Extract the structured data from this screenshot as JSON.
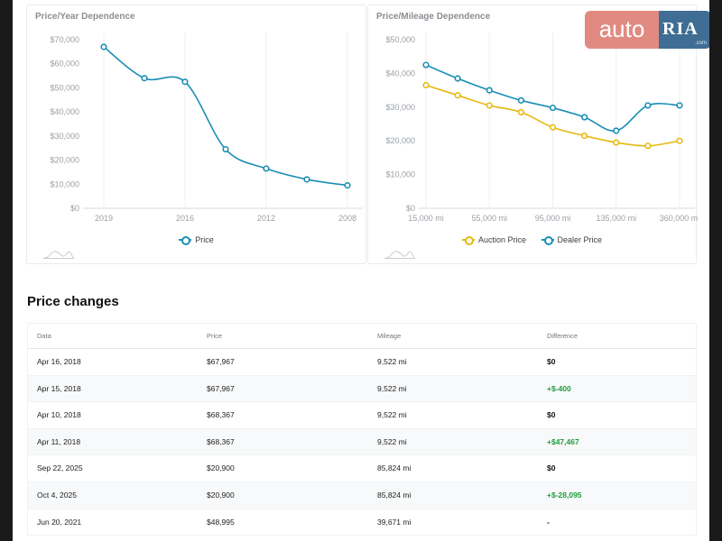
{
  "logo": {
    "left_text": "auto",
    "right_text": "RIA",
    "sub_text": ".com"
  },
  "year_chart": {
    "title": "Price/Year Dependence",
    "chart_data": {
      "type": "line",
      "x": [
        "2019",
        "",
        "2016",
        "",
        "2012",
        "",
        "2008"
      ],
      "x_tick_labels": [
        "2019",
        "2016",
        "2012",
        "2008"
      ],
      "series": [
        {
          "name": "Price",
          "color": "#1a8eb5",
          "values": [
            67000,
            54000,
            52500,
            24500,
            16500,
            12000,
            9500
          ]
        }
      ],
      "y_ticks": [
        "$70,000",
        "$60,000",
        "$50,000",
        "$40,000",
        "$30,000",
        "$20,000",
        "$10,000",
        "$0"
      ],
      "ylim": [
        0,
        70000
      ],
      "grid": true,
      "legend": "bottom"
    }
  },
  "mileage_chart": {
    "title": "Price/Mileage Dependence",
    "chart_data": {
      "type": "line",
      "x_tick_labels": [
        "15,000 mi",
        "55,000 mi",
        "95,000 mi",
        "135,000 mi",
        "360,000 mi"
      ],
      "series": [
        {
          "name": "Auction Price",
          "color": "#e6b912",
          "values": [
            36500,
            33500,
            30500,
            28500,
            24000,
            21500,
            19500,
            18500,
            20000
          ]
        },
        {
          "name": "Dealer Price",
          "color": "#1a8eb5",
          "values": [
            42500,
            38500,
            35000,
            32000,
            29800,
            27000,
            23000,
            30500,
            30500
          ]
        }
      ],
      "y_ticks": [
        "$50,000",
        "$40,000",
        "$30,000",
        "$20,000",
        "$10,000",
        "$0"
      ],
      "ylim": [
        0,
        50000
      ],
      "grid": true,
      "legend": "bottom"
    }
  },
  "price_changes": {
    "title": "Price changes",
    "headers": [
      "Data",
      "Price",
      "Mileage",
      "Difference"
    ],
    "rows": [
      {
        "date": "Apr 16, 2018",
        "price": "$67,967",
        "mileage": "9,522 mi",
        "difference": "$0",
        "kind": "zero"
      },
      {
        "date": "Apr 15, 2018",
        "price": "$67,967",
        "mileage": "9,522 mi",
        "difference": "+$-400",
        "kind": "pos"
      },
      {
        "date": "Apr 10, 2018",
        "price": "$68,367",
        "mileage": "9,522 mi",
        "difference": "$0",
        "kind": "zero"
      },
      {
        "date": "Apr 11, 2018",
        "price": "$68,367",
        "mileage": "9,522 mi",
        "difference": "+$47,467",
        "kind": "pos"
      },
      {
        "date": "Sep 22, 2025",
        "price": "$20,900",
        "mileage": "85,824 mi",
        "difference": "$0",
        "kind": "zero"
      },
      {
        "date": "Oct 4, 2025",
        "price": "$20,900",
        "mileage": "85,824 mi",
        "difference": "+$-28,095",
        "kind": "pos"
      },
      {
        "date": "Jun 20, 2021",
        "price": "$48,995",
        "mileage": "39,671 mi",
        "difference": "-",
        "kind": "zero"
      }
    ]
  }
}
